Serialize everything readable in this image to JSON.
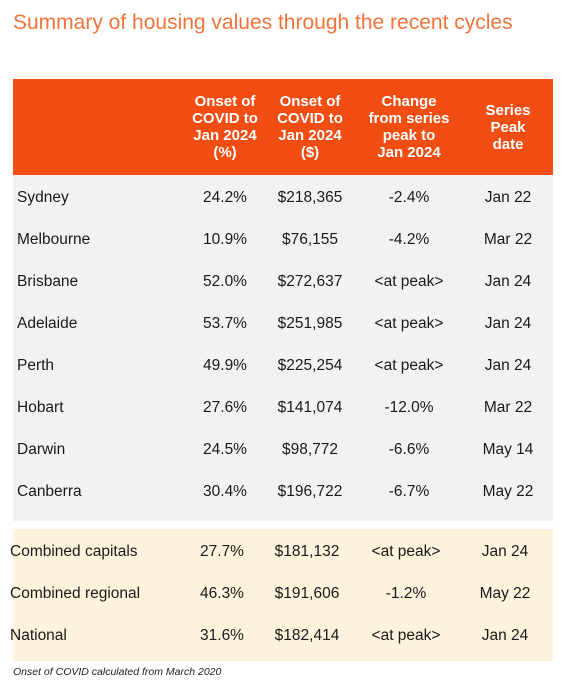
{
  "title": "Summary of housing values through the recent cycles",
  "colors": {
    "title": "#f2743b",
    "header_bg": "#f24d12",
    "city_bg": "#f2f2f2",
    "aggregate_bg": "#fdf3dc"
  },
  "columns": [
    "",
    "Onset of\nCOVID to\nJan 2024\n(%)",
    "Onset of\nCOVID to\nJan 2024\n($)",
    "Change\nfrom series\npeak to\nJan 2024",
    "Series\nPeak\ndate"
  ],
  "city_rows": [
    [
      "Sydney",
      "24.2%",
      "$218,365",
      "-2.4%",
      "Jan 22"
    ],
    [
      "Melbourne",
      "10.9%",
      "$76,155",
      "-4.2%",
      "Mar 22"
    ],
    [
      "Brisbane",
      "52.0%",
      "$272,637",
      "<at peak>",
      "Jan 24"
    ],
    [
      "Adelaide",
      "53.7%",
      "$251,985",
      "<at peak>",
      "Jan 24"
    ],
    [
      "Perth",
      "49.9%",
      "$225,254",
      "<at peak>",
      "Jan 24"
    ],
    [
      "Hobart",
      "27.6%",
      "$141,074",
      "-12.0%",
      "Mar 22"
    ],
    [
      "Darwin",
      "24.5%",
      "$98,772",
      "-6.6%",
      "May 14"
    ],
    [
      "Canberra",
      "30.4%",
      "$196,722",
      "-6.7%",
      "May 22"
    ]
  ],
  "aggregate_rows": [
    [
      "Combined capitals",
      "27.7%",
      "$181,132",
      "<at peak>",
      "Jan 24"
    ],
    [
      "Combined regional",
      "46.3%",
      "$191,606",
      "-1.2%",
      "May 22"
    ],
    [
      "National",
      "31.6%",
      "$182,414",
      "<at peak>",
      "Jan 24"
    ]
  ],
  "footnote": "Onset of COVID calculated from March 2020"
}
